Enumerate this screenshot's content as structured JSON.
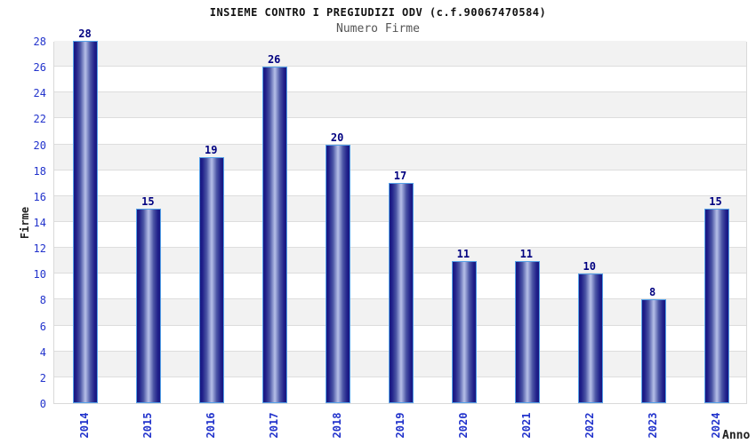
{
  "header": {
    "title": "INSIEME CONTRO I PREGIUDIZI ODV (c.f.90067470584)",
    "subtitle": "Numero Firme"
  },
  "colors": {
    "tick_blue": "#2233cc",
    "value_navy": "#000080",
    "bar_dark": "#171780",
    "bar_light": "#b6bfe8",
    "bar_border": "#55a1e8",
    "band_gray": "#f2f2f2",
    "gridline": "#dddddd",
    "subtitle_gray": "#555555"
  },
  "chart_data": {
    "type": "bar",
    "title": "INSIEME CONTRO I PREGIUDIZI ODV (c.f.90067470584)",
    "subtitle": "Numero Firme",
    "categories": [
      "2014",
      "2015",
      "2016",
      "2017",
      "2018",
      "2019",
      "2020",
      "2021",
      "2022",
      "2023",
      "2024"
    ],
    "values": [
      28,
      15,
      19,
      26,
      20,
      17,
      11,
      11,
      10,
      8,
      15
    ],
    "xlabel": "Anno",
    "ylabel": "Firme",
    "ylim": [
      0,
      28
    ],
    "ytick_step": 2,
    "yticks": [
      0,
      2,
      4,
      6,
      8,
      10,
      12,
      14,
      16,
      18,
      20,
      22,
      24,
      26,
      28
    ],
    "grid": "horizontal gridlines every 2 units with alternating white/gray bands",
    "legend": "none",
    "bar_value_labels": true
  }
}
